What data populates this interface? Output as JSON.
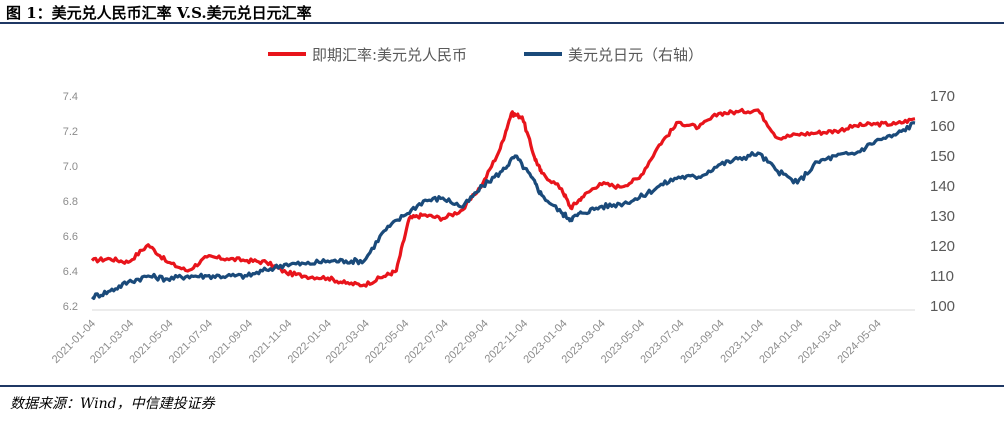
{
  "figure": {
    "title": "图 1：美元兑人民币汇率 V.S.美元兑日元汇率",
    "source": "数据来源：Wind，中信建投证券"
  },
  "chart_data": {
    "type": "line",
    "title": "",
    "legend_position": "top",
    "grid": false,
    "y_left_ticks": [
      "6.2",
      "6.4",
      "6.6",
      "6.8",
      "7.0",
      "7.2",
      "7.4"
    ],
    "y_left_range": [
      6.2,
      7.4
    ],
    "y_right_ticks": [
      "100",
      "110",
      "120",
      "130",
      "140",
      "150",
      "160",
      "170"
    ],
    "y_right_range": [
      100,
      170
    ],
    "x_ticks": [
      "2021-01-04",
      "2021-03-04",
      "2021-05-04",
      "2021-07-04",
      "2021-09-04",
      "2021-11-04",
      "2022-01-04",
      "2022-03-04",
      "2022-05-04",
      "2022-07-04",
      "2022-09-04",
      "2022-11-04",
      "2023-01-04",
      "2023-03-04",
      "2023-05-04",
      "2023-07-04",
      "2023-09-04",
      "2023-11-04",
      "2024-01-04",
      "2024-03-04",
      "2024-05-04"
    ],
    "series": [
      {
        "name": "即期汇率:美元兑人民币",
        "axis": "left",
        "color": "#e8141b",
        "x": [
          "2021-01-04",
          "2021-02-01",
          "2021-03-01",
          "2021-04-01",
          "2021-05-01",
          "2021-06-01",
          "2021-07-01",
          "2021-08-01",
          "2021-09-01",
          "2021-10-01",
          "2021-11-01",
          "2021-12-01",
          "2022-01-04",
          "2022-02-01",
          "2022-03-01",
          "2022-04-01",
          "2022-04-20",
          "2022-05-10",
          "2022-06-01",
          "2022-07-01",
          "2022-08-01",
          "2022-09-01",
          "2022-09-28",
          "2022-10-15",
          "2022-11-01",
          "2022-11-20",
          "2022-12-01",
          "2023-01-01",
          "2023-01-15",
          "2023-02-01",
          "2023-03-01",
          "2023-04-01",
          "2023-05-01",
          "2023-06-01",
          "2023-07-01",
          "2023-08-01",
          "2023-09-01",
          "2023-10-01",
          "2023-11-01",
          "2023-12-01",
          "2024-01-01",
          "2024-02-01",
          "2024-03-01",
          "2024-04-01",
          "2024-05-01",
          "2024-06-01",
          "2024-07-01"
        ],
        "values": [
          6.46,
          6.47,
          6.45,
          6.55,
          6.45,
          6.4,
          6.48,
          6.47,
          6.46,
          6.45,
          6.39,
          6.37,
          6.36,
          6.33,
          6.32,
          6.37,
          6.4,
          6.7,
          6.72,
          6.7,
          6.75,
          6.9,
          7.1,
          7.3,
          7.28,
          7.05,
          6.96,
          6.87,
          6.76,
          6.82,
          6.9,
          6.88,
          6.93,
          7.12,
          7.25,
          7.22,
          7.3,
          7.31,
          7.32,
          7.16,
          7.18,
          7.19,
          7.2,
          7.23,
          7.24,
          7.24,
          7.27
        ]
      },
      {
        "name": "美元兑日元（右轴）",
        "axis": "right",
        "color": "#1a4a7a",
        "x": [
          "2021-01-04",
          "2021-02-01",
          "2021-03-01",
          "2021-04-01",
          "2021-05-01",
          "2021-06-01",
          "2021-07-01",
          "2021-08-01",
          "2021-09-01",
          "2021-10-01",
          "2021-11-01",
          "2021-12-01",
          "2022-01-04",
          "2022-02-01",
          "2022-03-01",
          "2022-04-01",
          "2022-05-01",
          "2022-06-01",
          "2022-07-01",
          "2022-08-01",
          "2022-09-01",
          "2022-10-01",
          "2022-10-21",
          "2022-11-15",
          "2022-12-01",
          "2023-01-01",
          "2023-01-15",
          "2023-02-01",
          "2023-03-01",
          "2023-04-01",
          "2023-05-01",
          "2023-06-01",
          "2023-07-01",
          "2023-08-01",
          "2023-09-01",
          "2023-10-01",
          "2023-11-01",
          "2023-12-01",
          "2024-01-01",
          "2024-02-01",
          "2024-03-01",
          "2024-04-01",
          "2024-05-01",
          "2024-06-01",
          "2024-07-01"
        ],
        "values": [
          103,
          105,
          108,
          110,
          109,
          110,
          110,
          110,
          110,
          112,
          114,
          114,
          115,
          115,
          115,
          125,
          130,
          135,
          136,
          133,
          140,
          145,
          150,
          143,
          137,
          131,
          129,
          131,
          133,
          134,
          136,
          140,
          143,
          143,
          147,
          149,
          151,
          145,
          141,
          148,
          150,
          151,
          155,
          157,
          161
        ]
      }
    ]
  }
}
